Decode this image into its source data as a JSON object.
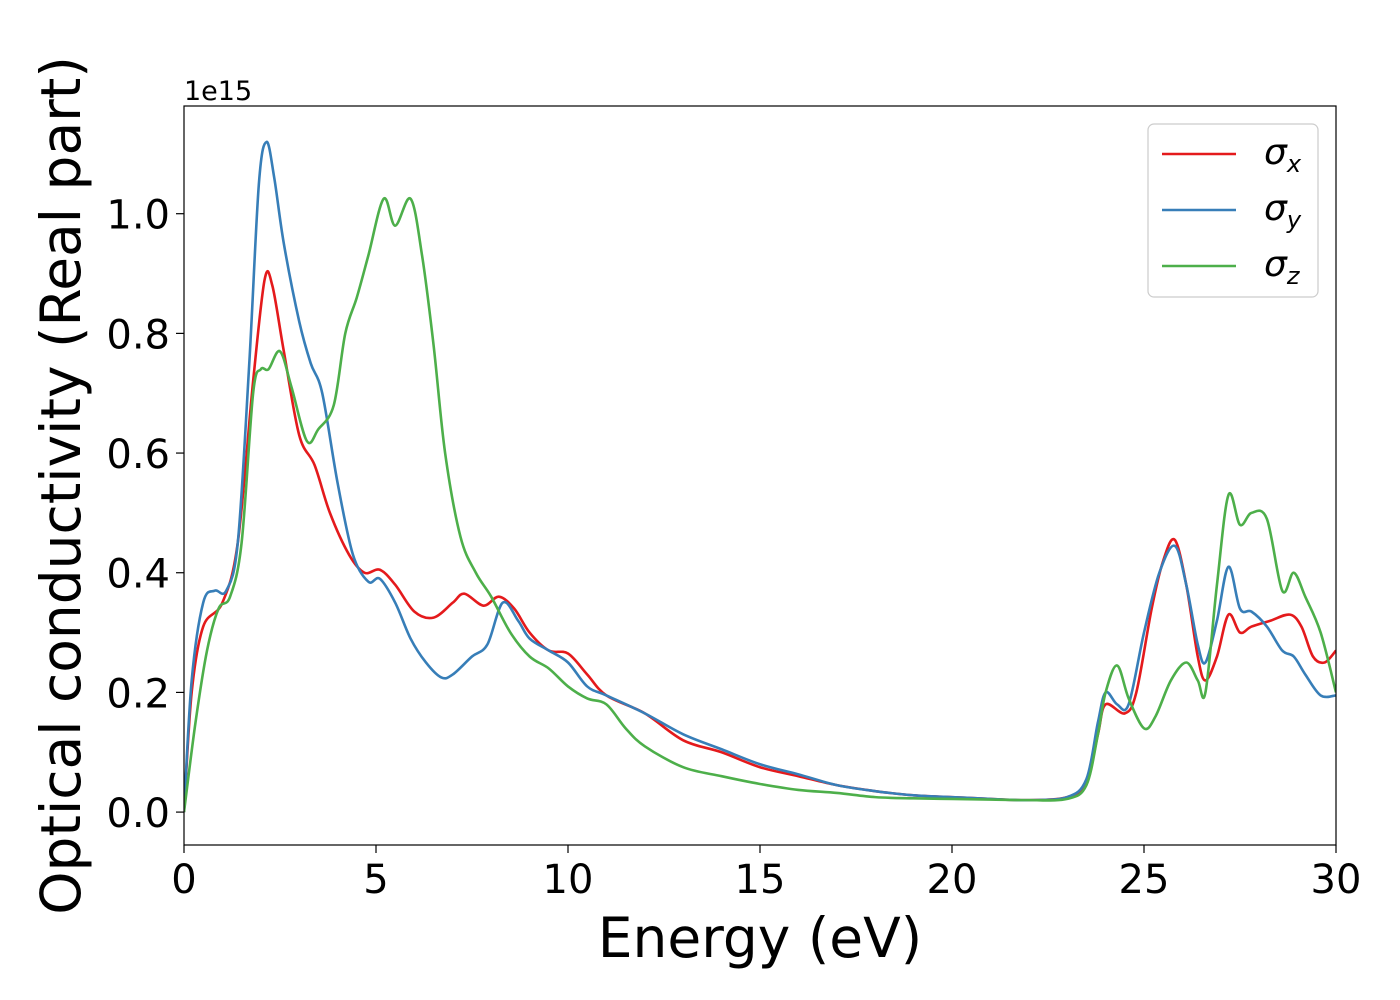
{
  "chart_data": {
    "type": "line",
    "xlabel": "Energy (eV)",
    "ylabel": "Optical conductivity (Real part)",
    "y_offset_text": "1e15",
    "xlim": [
      0,
      30
    ],
    "ylim": [
      -0.055,
      1.18
    ],
    "x_ticks": [
      0,
      5,
      10,
      15,
      20,
      25,
      30
    ],
    "x_tick_labels": [
      "0",
      "5",
      "10",
      "15",
      "20",
      "25",
      "30"
    ],
    "y_ticks": [
      0.0,
      0.2,
      0.4,
      0.6,
      0.8,
      1.0
    ],
    "y_tick_labels": [
      "0.0",
      "0.2",
      "0.4",
      "0.6",
      "0.8",
      "1.0"
    ],
    "grid": false,
    "legend_position": "top-right",
    "series": [
      {
        "name": "σx",
        "symbol": "σ",
        "subscript": "x",
        "color": "#e41a1c",
        "points": [
          [
            0,
            0
          ],
          [
            0.2,
            0.2
          ],
          [
            0.5,
            0.31
          ],
          [
            1.0,
            0.35
          ],
          [
            1.4,
            0.45
          ],
          [
            1.8,
            0.72
          ],
          [
            2.1,
            0.89
          ],
          [
            2.3,
            0.88
          ],
          [
            2.6,
            0.77
          ],
          [
            3.0,
            0.63
          ],
          [
            3.4,
            0.58
          ],
          [
            3.8,
            0.5
          ],
          [
            4.3,
            0.43
          ],
          [
            4.7,
            0.4
          ],
          [
            5.1,
            0.405
          ],
          [
            5.5,
            0.38
          ],
          [
            6.0,
            0.335
          ],
          [
            6.5,
            0.325
          ],
          [
            7.0,
            0.35
          ],
          [
            7.3,
            0.365
          ],
          [
            7.8,
            0.345
          ],
          [
            8.2,
            0.36
          ],
          [
            8.6,
            0.34
          ],
          [
            9.0,
            0.3
          ],
          [
            9.5,
            0.27
          ],
          [
            10.0,
            0.265
          ],
          [
            10.5,
            0.23
          ],
          [
            11.0,
            0.195
          ],
          [
            12.0,
            0.165
          ],
          [
            13.0,
            0.12
          ],
          [
            14.0,
            0.1
          ],
          [
            15.0,
            0.075
          ],
          [
            16.0,
            0.06
          ],
          [
            17.0,
            0.045
          ],
          [
            18.0,
            0.035
          ],
          [
            19.0,
            0.028
          ],
          [
            20.0,
            0.025
          ],
          [
            21.0,
            0.022
          ],
          [
            22.0,
            0.02
          ],
          [
            23.0,
            0.025
          ],
          [
            23.5,
            0.05
          ],
          [
            23.8,
            0.13
          ],
          [
            24.0,
            0.18
          ],
          [
            24.5,
            0.165
          ],
          [
            24.8,
            0.2
          ],
          [
            25.2,
            0.34
          ],
          [
            25.5,
            0.42
          ],
          [
            25.8,
            0.455
          ],
          [
            26.1,
            0.38
          ],
          [
            26.4,
            0.26
          ],
          [
            26.6,
            0.22
          ],
          [
            26.9,
            0.26
          ],
          [
            27.2,
            0.33
          ],
          [
            27.5,
            0.3
          ],
          [
            27.8,
            0.31
          ],
          [
            28.3,
            0.32
          ],
          [
            28.8,
            0.33
          ],
          [
            29.1,
            0.31
          ],
          [
            29.4,
            0.26
          ],
          [
            29.7,
            0.25
          ],
          [
            30.0,
            0.27
          ]
        ]
      },
      {
        "name": "σy",
        "symbol": "σ",
        "subscript": "y",
        "color": "#377eb8",
        "points": [
          [
            0,
            0
          ],
          [
            0.2,
            0.22
          ],
          [
            0.5,
            0.35
          ],
          [
            0.8,
            0.37
          ],
          [
            1.1,
            0.37
          ],
          [
            1.4,
            0.45
          ],
          [
            1.7,
            0.75
          ],
          [
            1.95,
            1.05
          ],
          [
            2.15,
            1.12
          ],
          [
            2.35,
            1.06
          ],
          [
            2.6,
            0.95
          ],
          [
            3.0,
            0.82
          ],
          [
            3.3,
            0.75
          ],
          [
            3.6,
            0.7
          ],
          [
            4.0,
            0.55
          ],
          [
            4.4,
            0.43
          ],
          [
            4.8,
            0.385
          ],
          [
            5.1,
            0.39
          ],
          [
            5.5,
            0.35
          ],
          [
            5.9,
            0.29
          ],
          [
            6.3,
            0.25
          ],
          [
            6.7,
            0.225
          ],
          [
            7.0,
            0.23
          ],
          [
            7.5,
            0.26
          ],
          [
            7.9,
            0.28
          ],
          [
            8.3,
            0.35
          ],
          [
            8.7,
            0.32
          ],
          [
            9.0,
            0.29
          ],
          [
            9.5,
            0.27
          ],
          [
            10.0,
            0.25
          ],
          [
            10.5,
            0.21
          ],
          [
            11.0,
            0.195
          ],
          [
            12.0,
            0.165
          ],
          [
            13.0,
            0.13
          ],
          [
            14.0,
            0.105
          ],
          [
            15.0,
            0.08
          ],
          [
            16.0,
            0.063
          ],
          [
            17.0,
            0.045
          ],
          [
            18.0,
            0.035
          ],
          [
            19.0,
            0.028
          ],
          [
            20.0,
            0.025
          ],
          [
            21.0,
            0.022
          ],
          [
            22.0,
            0.02
          ],
          [
            23.0,
            0.025
          ],
          [
            23.5,
            0.055
          ],
          [
            23.8,
            0.15
          ],
          [
            24.0,
            0.2
          ],
          [
            24.3,
            0.18
          ],
          [
            24.6,
            0.18
          ],
          [
            25.0,
            0.3
          ],
          [
            25.4,
            0.4
          ],
          [
            25.8,
            0.445
          ],
          [
            26.1,
            0.38
          ],
          [
            26.4,
            0.28
          ],
          [
            26.6,
            0.25
          ],
          [
            26.9,
            0.32
          ],
          [
            27.2,
            0.41
          ],
          [
            27.5,
            0.34
          ],
          [
            27.8,
            0.335
          ],
          [
            28.2,
            0.31
          ],
          [
            28.6,
            0.27
          ],
          [
            28.9,
            0.26
          ],
          [
            29.2,
            0.23
          ],
          [
            29.6,
            0.195
          ],
          [
            30.0,
            0.195
          ]
        ]
      },
      {
        "name": "σz",
        "symbol": "σ",
        "subscript": "z",
        "color": "#4daf4a",
        "points": [
          [
            0,
            0
          ],
          [
            0.3,
            0.15
          ],
          [
            0.6,
            0.27
          ],
          [
            0.9,
            0.34
          ],
          [
            1.2,
            0.36
          ],
          [
            1.5,
            0.45
          ],
          [
            1.8,
            0.7
          ],
          [
            2.0,
            0.74
          ],
          [
            2.2,
            0.74
          ],
          [
            2.5,
            0.77
          ],
          [
            2.8,
            0.71
          ],
          [
            3.2,
            0.62
          ],
          [
            3.5,
            0.64
          ],
          [
            3.9,
            0.68
          ],
          [
            4.2,
            0.8
          ],
          [
            4.5,
            0.86
          ],
          [
            4.8,
            0.93
          ],
          [
            5.2,
            1.025
          ],
          [
            5.5,
            0.98
          ],
          [
            5.9,
            1.025
          ],
          [
            6.2,
            0.93
          ],
          [
            6.5,
            0.78
          ],
          [
            6.8,
            0.6
          ],
          [
            7.2,
            0.46
          ],
          [
            7.6,
            0.4
          ],
          [
            8.0,
            0.36
          ],
          [
            8.5,
            0.3
          ],
          [
            9.0,
            0.26
          ],
          [
            9.5,
            0.24
          ],
          [
            10.0,
            0.21
          ],
          [
            10.5,
            0.19
          ],
          [
            11.0,
            0.18
          ],
          [
            11.5,
            0.14
          ],
          [
            12.0,
            0.11
          ],
          [
            13.0,
            0.075
          ],
          [
            14.0,
            0.06
          ],
          [
            15.0,
            0.047
          ],
          [
            16.0,
            0.037
          ],
          [
            17.0,
            0.032
          ],
          [
            18.0,
            0.025
          ],
          [
            19.0,
            0.023
          ],
          [
            20.0,
            0.022
          ],
          [
            21.0,
            0.021
          ],
          [
            22.0,
            0.02
          ],
          [
            23.0,
            0.022
          ],
          [
            23.5,
            0.045
          ],
          [
            23.8,
            0.13
          ],
          [
            24.0,
            0.2
          ],
          [
            24.3,
            0.245
          ],
          [
            24.6,
            0.19
          ],
          [
            25.0,
            0.14
          ],
          [
            25.3,
            0.16
          ],
          [
            25.7,
            0.22
          ],
          [
            26.1,
            0.25
          ],
          [
            26.4,
            0.22
          ],
          [
            26.6,
            0.2
          ],
          [
            26.9,
            0.38
          ],
          [
            27.2,
            0.53
          ],
          [
            27.5,
            0.48
          ],
          [
            27.8,
            0.5
          ],
          [
            28.2,
            0.49
          ],
          [
            28.6,
            0.37
          ],
          [
            28.9,
            0.4
          ],
          [
            29.2,
            0.36
          ],
          [
            29.6,
            0.3
          ],
          [
            30.0,
            0.2
          ]
        ]
      }
    ]
  }
}
